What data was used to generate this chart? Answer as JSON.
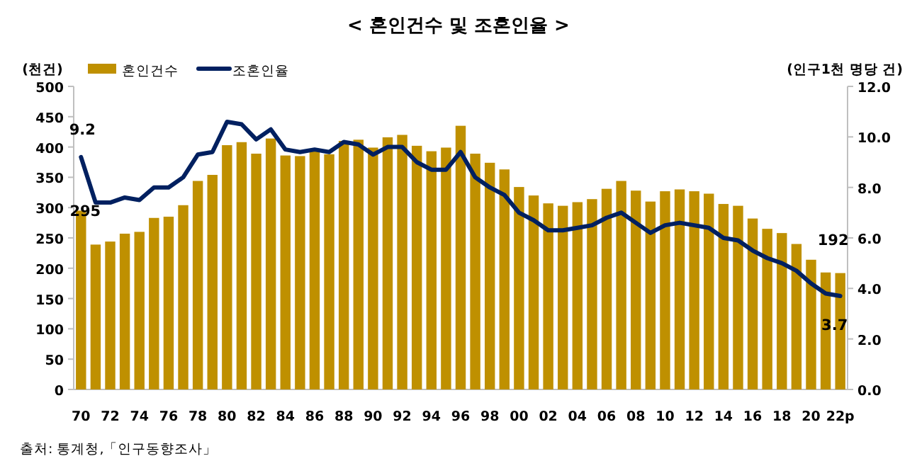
{
  "chart_data": {
    "type": "bar",
    "title": "< 혼인건수 및 조혼인율 >",
    "categories": [
      "70",
      null,
      "72",
      null,
      "74",
      null,
      "76",
      null,
      "78",
      null,
      "80",
      null,
      "82",
      null,
      "84",
      null,
      "86",
      null,
      "88",
      null,
      "90",
      null,
      "92",
      null,
      "94",
      null,
      "96",
      null,
      "98",
      null,
      "00",
      null,
      "02",
      null,
      "04",
      null,
      "06",
      null,
      "08",
      null,
      "10",
      null,
      "12",
      null,
      "14",
      null,
      "16",
      null,
      "18",
      null,
      "20",
      null,
      "22p"
    ],
    "series": [
      {
        "name": "혼인건수",
        "color": "#bf9000",
        "values": [
          295,
          239,
          244,
          257,
          260,
          283,
          285,
          304,
          344,
          354,
          403,
          408,
          389,
          414,
          386,
          385,
          393,
          388,
          410,
          412,
          399,
          416,
          420,
          402,
          393,
          399,
          435,
          389,
          374,
          363,
          334,
          320,
          307,
          303,
          309,
          314,
          331,
          344,
          328,
          310,
          327,
          330,
          327,
          323,
          306,
          303,
          282,
          265,
          258,
          240,
          214,
          193,
          192
        ],
        "value_labels": [
          "295",
          null,
          null,
          null,
          null,
          null,
          null,
          null,
          null,
          null,
          null,
          null,
          null,
          null,
          null,
          null,
          null,
          null,
          null,
          null,
          null,
          null,
          null,
          null,
          null,
          null,
          null,
          null,
          null,
          null,
          null,
          null,
          null,
          null,
          null,
          null,
          null,
          null,
          null,
          null,
          null,
          null,
          null,
          null,
          null,
          null,
          null,
          null,
          null,
          null,
          null,
          null,
          "192"
        ]
      },
      {
        "name": "조혼인율",
        "type": "line",
        "axis": "y2",
        "color": "#002060",
        "values": [
          9.2,
          7.4,
          7.4,
          7.6,
          7.5,
          8.0,
          8.0,
          8.4,
          9.3,
          9.4,
          10.6,
          10.5,
          9.9,
          10.3,
          9.5,
          9.4,
          9.5,
          9.4,
          9.8,
          9.7,
          9.3,
          9.6,
          9.6,
          9.0,
          8.7,
          8.7,
          9.4,
          8.4,
          8.0,
          7.7,
          7.0,
          6.7,
          6.3,
          6.3,
          6.4,
          6.5,
          6.8,
          7.0,
          6.6,
          6.2,
          6.5,
          6.6,
          6.5,
          6.4,
          6.0,
          5.9,
          5.5,
          5.2,
          5.0,
          4.7,
          4.2,
          3.8,
          3.7
        ],
        "value_labels": [
          "9.2",
          null,
          null,
          null,
          null,
          null,
          null,
          null,
          null,
          null,
          null,
          null,
          null,
          null,
          null,
          null,
          null,
          null,
          null,
          null,
          null,
          null,
          null,
          null,
          null,
          null,
          null,
          null,
          null,
          null,
          null,
          null,
          null,
          null,
          null,
          null,
          null,
          null,
          null,
          null,
          null,
          null,
          null,
          null,
          null,
          null,
          null,
          null,
          null,
          null,
          null,
          null,
          "3.7"
        ]
      }
    ],
    "ylabel": "(천건)",
    "y2label": "(인구1천 명당 건)",
    "ylim": [
      0,
      500
    ],
    "yticks": [
      0,
      50,
      100,
      150,
      200,
      250,
      300,
      350,
      400,
      450,
      500
    ],
    "y2lim": [
      0,
      12
    ],
    "y2ticks": [
      {
        "value": 0,
        "label": "0.0"
      },
      {
        "value": 2,
        "label": "2.0"
      },
      {
        "value": 4,
        "label": "4.0"
      },
      {
        "value": 6,
        "label": "6.0"
      },
      {
        "value": 8,
        "label": "8.0"
      },
      {
        "value": 10,
        "label": "10.0"
      },
      {
        "value": 12,
        "label": "12.0"
      }
    ],
    "legend": "top left",
    "marker": "none",
    "line_style": "solid",
    "annotations": [
      "출처: 통계청,「인구동향조사」"
    ]
  }
}
